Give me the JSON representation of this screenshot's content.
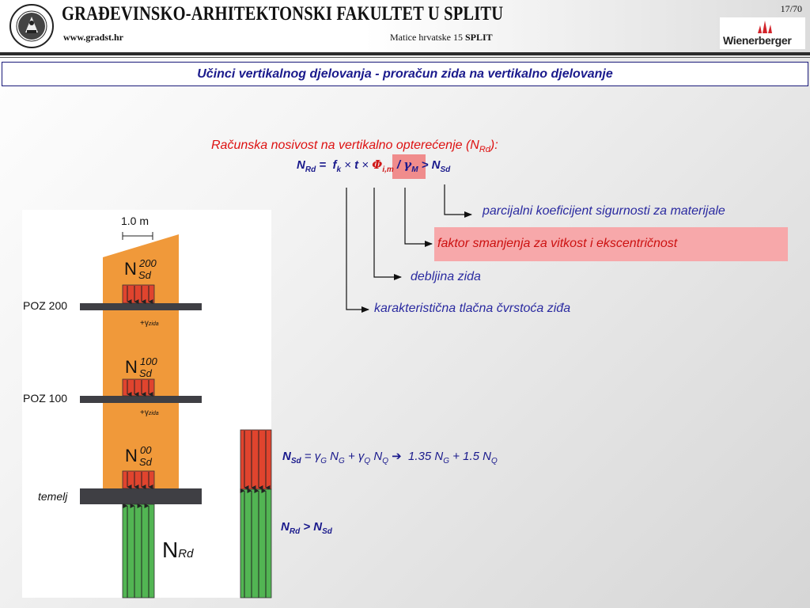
{
  "header": {
    "university": "GRAĐEVINSKO-ARHITEKTONSKI FAKULTET U SPLITU",
    "url": "www.gradst.hr",
    "address": "Matice hrvatske 15",
    "city": "SPLIT",
    "page": "17/70",
    "logo_text": "Wienerberger"
  },
  "slide": {
    "title": "Učinci vertikalnog djelovanja - proračun zida na vertikalno djelovanje"
  },
  "formula": {
    "caption_main": "Računska nosivost na vertikalno opterećenje (N",
    "caption_sub": "Rd",
    "caption_end": "):",
    "n": "N",
    "rd": "Rd",
    "eq": " =  ",
    "f": "f",
    "k": "k",
    "times1": " × ",
    "t": "t",
    "times2": " × ",
    "phi": "Φ",
    "im": "i,m",
    "slash": " / ",
    "gamma": "γ",
    "m": "M",
    "gt": " > N",
    "sd": "Sd"
  },
  "explanations": {
    "gamma_m": "parcijalni koeficijent sigurnosti za materijale",
    "phi": "faktor smanjenja za vitkost i ekscentričnost",
    "t": "debljina zida",
    "fk": "karakteristična tlačna čvrstoća ziđa"
  },
  "diagram": {
    "width_label": "1.0 m",
    "poz200": "POZ 200",
    "poz100": "POZ 100",
    "temelj": "temelj",
    "n_letter": "N",
    "sd": "Sd",
    "sup200": "200",
    "sup100": "100",
    "sup00": "00",
    "gamma_plus": "+γ",
    "gamma_sub": "zida",
    "nrd_n": "N",
    "nrd_sub": "Rd"
  },
  "equations": {
    "nsd_n": "N",
    "nsd_sub": "Sd",
    "eq_part1": " = γ",
    "g1": "G",
    "ng": " N",
    "g2": "G",
    "plus": " + γ",
    "q1": "Q",
    "nq": " N",
    "q2": "Q",
    "arrow": " ➔  ",
    "coef": "1.35 N",
    "g3": "G",
    "plus2": " + 1.5 N",
    "q3": "Q",
    "nrd_n": "N",
    "nrd_sub": "Rd",
    "gt": " > N",
    "sd2": "Sd"
  },
  "colors": {
    "title_blue": "#1a1a8c",
    "caption_red": "#dd1111",
    "wall_orange": "#f0993a",
    "load_red": "#e0442e",
    "support_green": "#52b553",
    "slab_dark": "#3f3f44",
    "highlight_pink": "#f7a8aa"
  }
}
